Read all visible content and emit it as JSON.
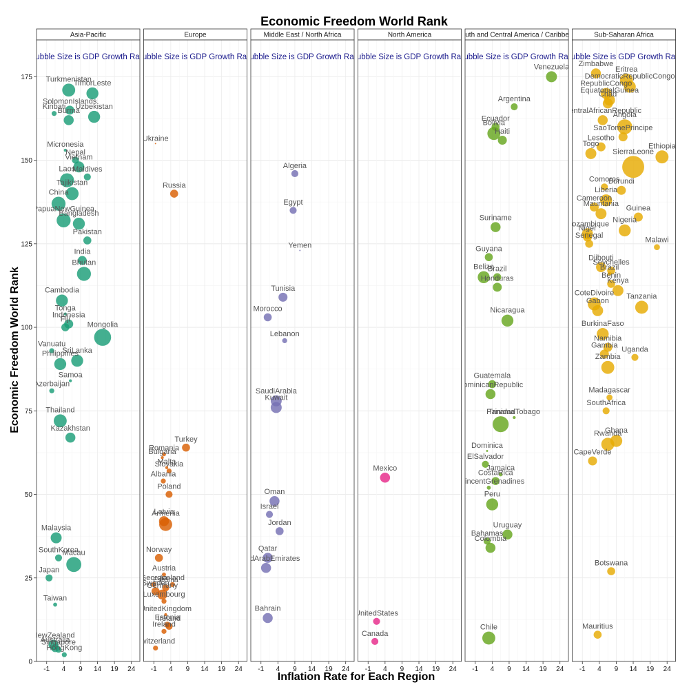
{
  "chart_data": {
    "type": "scatter",
    "title": "Economic Freedom World Rank",
    "xlabel": "Inflation Rate for Each Region",
    "ylabel": "Economic Freedom World Rank",
    "xlim": [
      -4,
      26.5
    ],
    "ylim": [
      0,
      186
    ],
    "x_ticks": [
      -1,
      4,
      9,
      14,
      19,
      24
    ],
    "y_ticks": [
      0,
      25,
      50,
      75,
      100,
      125,
      150,
      175
    ],
    "grid": true,
    "legend": "none",
    "panel_note": "Bubble Size is GDP Growth Rate",
    "panels": [
      {
        "name": "Asia-Pacific",
        "color": "#1b9e77",
        "points": [
          {
            "label": "Turkmenistan",
            "x": 5.5,
            "y": 171,
            "size": 6.5
          },
          {
            "label": "TimorLeste",
            "x": 12.5,
            "y": 170,
            "size": 6.0
          },
          {
            "label": "SolomonIslands",
            "x": 5.8,
            "y": 165,
            "size": 4.5
          },
          {
            "label": "Kiribati",
            "x": 1.2,
            "y": 164,
            "size": 2.5
          },
          {
            "label": "Burma",
            "x": 5.5,
            "y": 162,
            "size": 5.0
          },
          {
            "label": "Uzbekistan",
            "x": 13.0,
            "y": 163,
            "size": 6.0
          },
          {
            "label": "Micronesia",
            "x": 4.5,
            "y": 153,
            "size": 1.5
          },
          {
            "label": "Nepal",
            "x": 7.5,
            "y": 150,
            "size": 3.5
          },
          {
            "label": "Vietnam",
            "x": 8.5,
            "y": 148,
            "size": 5.5
          },
          {
            "label": "Maldives",
            "x": 11.0,
            "y": 145,
            "size": 3.5
          },
          {
            "label": "Laos",
            "x": 5.0,
            "y": 144,
            "size": 7.0
          },
          {
            "label": "Tajikistan",
            "x": 6.5,
            "y": 140,
            "size": 6.5
          },
          {
            "label": "China",
            "x": 2.5,
            "y": 137,
            "size": 7.0
          },
          {
            "label": "PapuaNewGuinea",
            "x": 4.0,
            "y": 132,
            "size": 7.0
          },
          {
            "label": "Bangladesh",
            "x": 8.5,
            "y": 131,
            "size": 6.0
          },
          {
            "label": "Pakistan",
            "x": 11.0,
            "y": 126,
            "size": 4.0
          },
          {
            "label": "India",
            "x": 9.5,
            "y": 120,
            "size": 4.5
          },
          {
            "label": "Bhutan",
            "x": 10.0,
            "y": 116,
            "size": 7.0
          },
          {
            "label": "Cambodia",
            "x": 3.5,
            "y": 108,
            "size": 6.0
          },
          {
            "label": "Tonga",
            "x": 4.5,
            "y": 104,
            "size": 1.5
          },
          {
            "label": "Indonesia",
            "x": 5.5,
            "y": 101,
            "size": 4.5
          },
          {
            "label": "Fiji",
            "x": 4.5,
            "y": 100,
            "size": 4.0
          },
          {
            "label": "Mongolia",
            "x": 15.5,
            "y": 97,
            "size": 8.5
          },
          {
            "label": "Vanuatu",
            "x": 0.5,
            "y": 93,
            "size": 2.5
          },
          {
            "label": "SriLanka",
            "x": 8.0,
            "y": 90,
            "size": 6.0
          },
          {
            "label": "Philippines",
            "x": 3.0,
            "y": 89,
            "size": 6.0
          },
          {
            "label": "Samoa",
            "x": 6.0,
            "y": 84,
            "size": 1.5
          },
          {
            "label": "Azerbaijan",
            "x": 0.5,
            "y": 81,
            "size": 2.5
          },
          {
            "label": "Thailand",
            "x": 3.0,
            "y": 72,
            "size": 6.5
          },
          {
            "label": "Kazakhstan",
            "x": 6.0,
            "y": 67,
            "size": 5.0
          },
          {
            "label": "Malaysia",
            "x": 1.8,
            "y": 37,
            "size": 5.5
          },
          {
            "label": "SouthKorea",
            "x": 2.5,
            "y": 31,
            "size": 3.5
          },
          {
            "label": "Macau",
            "x": 7.0,
            "y": 29,
            "size": 7.5
          },
          {
            "label": "Japan",
            "x": -0.3,
            "y": 25,
            "size": 3.5
          },
          {
            "label": "Taiwan",
            "x": 1.5,
            "y": 17,
            "size": 2.0
          },
          {
            "label": "NewZealand",
            "x": 1.0,
            "y": 5,
            "size": 5.0
          },
          {
            "label": "Australia",
            "x": 1.5,
            "y": 4,
            "size": 4.0
          },
          {
            "label": "Singapore",
            "x": 2.5,
            "y": 3.5,
            "size": 3.0
          },
          {
            "label": "HongKong",
            "x": 4.2,
            "y": 2,
            "size": 2.5
          }
        ]
      },
      {
        "name": "Europe",
        "color": "#d95f02",
        "points": [
          {
            "label": "Ukraine",
            "x": -0.5,
            "y": 155,
            "size": 0.5
          },
          {
            "label": "Russia",
            "x": 5.0,
            "y": 140,
            "size": 4.0
          },
          {
            "label": "Turkey",
            "x": 8.5,
            "y": 64,
            "size": 4.0
          },
          {
            "label": "Romania",
            "x": 2.0,
            "y": 62,
            "size": 2.0
          },
          {
            "label": "Bulgaria",
            "x": 1.5,
            "y": 61,
            "size": 1.5
          },
          {
            "label": "Malta",
            "x": 2.8,
            "y": 58,
            "size": 1.5
          },
          {
            "label": "Slovakia",
            "x": 3.5,
            "y": 57,
            "size": 2.5
          },
          {
            "label": "Albania",
            "x": 1.8,
            "y": 54,
            "size": 2.5
          },
          {
            "label": "Poland",
            "x": 3.5,
            "y": 50,
            "size": 3.5
          },
          {
            "label": "Latvia",
            "x": 2.0,
            "y": 42,
            "size": 5.0
          },
          {
            "label": "Armenia",
            "x": 2.5,
            "y": 41,
            "size": 6.5
          },
          {
            "label": "Norway",
            "x": 0.5,
            "y": 31,
            "size": 4.0
          },
          {
            "label": "Austria",
            "x": 2.0,
            "y": 26,
            "size": 2.0
          },
          {
            "label": "Iceland",
            "x": 4.5,
            "y": 23,
            "size": 2.5
          },
          {
            "label": "Georgia",
            "x": -1.0,
            "y": 23,
            "size": 2.5
          },
          {
            "label": "Estonia",
            "x": 2.5,
            "y": 22,
            "size": 3.5
          },
          {
            "label": "Sweden",
            "x": -0.5,
            "y": 21,
            "size": 4.0
          },
          {
            "label": "Germany",
            "x": 1.5,
            "y": 20,
            "size": 5.0
          },
          {
            "label": "Luxembourg",
            "x": 2.0,
            "y": 18,
            "size": 2.5
          },
          {
            "label": "UnitedKingdom",
            "x": 2.5,
            "y": 14,
            "size": 1.5
          },
          {
            "label": "Estonia",
            "x": 3.0,
            "y": 11,
            "size": 3.0
          },
          {
            "label": "Ireland",
            "x": 3.5,
            "y": 10.5,
            "size": 3.5
          },
          {
            "label": "Ireland",
            "x": 2.0,
            "y": 9,
            "size": 2.5
          },
          {
            "label": "Switzerland",
            "x": -0.5,
            "y": 4,
            "size": 2.5
          }
        ]
      },
      {
        "name": "Middle East / North Africa",
        "color": "#7570b3",
        "points": [
          {
            "label": "Algeria",
            "x": 9.0,
            "y": 146,
            "size": 3.5
          },
          {
            "label": "Egypt",
            "x": 8.5,
            "y": 135,
            "size": 3.5
          },
          {
            "label": "Yemen",
            "x": 10.5,
            "y": 123,
            "size": 0.5
          },
          {
            "label": "Tunisia",
            "x": 5.5,
            "y": 109,
            "size": 4.5
          },
          {
            "label": "Morocco",
            "x": 1.0,
            "y": 103,
            "size": 4.0
          },
          {
            "label": "Lebanon",
            "x": 6.0,
            "y": 96,
            "size": 2.5
          },
          {
            "label": "SaudiArabia",
            "x": 3.5,
            "y": 78,
            "size": 5.5
          },
          {
            "label": "Kuwait",
            "x": 3.5,
            "y": 76,
            "size": 5.5
          },
          {
            "label": "Oman",
            "x": 3.0,
            "y": 48,
            "size": 5.0
          },
          {
            "label": "Israel",
            "x": 1.5,
            "y": 44,
            "size": 3.5
          },
          {
            "label": "Jordan",
            "x": 4.5,
            "y": 39,
            "size": 4.0
          },
          {
            "label": "Qatar",
            "x": 1.0,
            "y": 31,
            "size": 5.0
          },
          {
            "label": "UnitedArabEmirates",
            "x": 0.5,
            "y": 28,
            "size": 5.0
          },
          {
            "label": "Bahrain",
            "x": 1.0,
            "y": 13,
            "size": 5.0
          }
        ]
      },
      {
        "name": "North America",
        "color": "#e7298a",
        "points": [
          {
            "label": "Mexico",
            "x": 4.0,
            "y": 55,
            "size": 5.0
          },
          {
            "label": "UnitedStates",
            "x": 1.5,
            "y": 12,
            "size": 3.5
          },
          {
            "label": "Canada",
            "x": 1.0,
            "y": 6,
            "size": 3.5
          }
        ]
      },
      {
        "name": "South and Central America / Caribbean",
        "color": "#66a61e",
        "points": [
          {
            "label": "Venezuela",
            "x": 21.5,
            "y": 175,
            "size": 5.5
          },
          {
            "label": "Argentina",
            "x": 10.5,
            "y": 166,
            "size": 3.5
          },
          {
            "label": "Ecuador",
            "x": 5.0,
            "y": 160,
            "size": 4.0
          },
          {
            "label": "Bolivia",
            "x": 4.5,
            "y": 158,
            "size": 6.5
          },
          {
            "label": "Haiti",
            "x": 7.0,
            "y": 156,
            "size": 4.5
          },
          {
            "label": "Suriname",
            "x": 5.0,
            "y": 130,
            "size": 5.0
          },
          {
            "label": "Guyana",
            "x": 3.0,
            "y": 121,
            "size": 4.0
          },
          {
            "label": "Belize",
            "x": 1.5,
            "y": 115,
            "size": 6.0
          },
          {
            "label": "Brazil",
            "x": 5.5,
            "y": 115,
            "size": 4.0
          },
          {
            "label": "Honduras",
            "x": 5.5,
            "y": 112,
            "size": 4.5
          },
          {
            "label": "Nicaragua",
            "x": 8.5,
            "y": 102,
            "size": 6.0
          },
          {
            "label": "Guatemala",
            "x": 4.0,
            "y": 83,
            "size": 4.0
          },
          {
            "label": "DominicanRepublic",
            "x": 3.5,
            "y": 80,
            "size": 5.0
          },
          {
            "label": "TrinidadTobago",
            "x": 10.5,
            "y": 73,
            "size": 1.5
          },
          {
            "label": "Panama",
            "x": 6.5,
            "y": 71,
            "size": 8.0
          },
          {
            "label": "Dominica",
            "x": 2.5,
            "y": 63,
            "size": 1.0
          },
          {
            "label": "ElSalvador",
            "x": 2.0,
            "y": 59,
            "size": 3.5
          },
          {
            "label": "Jamaica",
            "x": 6.5,
            "y": 56,
            "size": 2.0
          },
          {
            "label": "CostaRica",
            "x": 5.0,
            "y": 54,
            "size": 4.0
          },
          {
            "label": "StVincentGrenadines",
            "x": 3.0,
            "y": 52,
            "size": 2.0
          },
          {
            "label": "Peru",
            "x": 4.0,
            "y": 47,
            "size": 6.0
          },
          {
            "label": "Uruguay",
            "x": 8.5,
            "y": 38,
            "size": 5.0
          },
          {
            "label": "Bahamas",
            "x": 2.5,
            "y": 36,
            "size": 3.5
          },
          {
            "label": "Colombia",
            "x": 3.5,
            "y": 34,
            "size": 5.0
          },
          {
            "label": "Chile",
            "x": 3.0,
            "y": 7,
            "size": 6.5
          }
        ]
      },
      {
        "name": "Sub-Saharan Africa",
        "color": "#e6ab02",
        "points": [
          {
            "label": "Zimbabwe",
            "x": 3.0,
            "y": 176,
            "size": 5.0
          },
          {
            "label": "Eritrea",
            "x": 12.0,
            "y": 174,
            "size": 6.5
          },
          {
            "label": "DemocraticRepublicCongo",
            "x": 13.0,
            "y": 172,
            "size": 6.0
          },
          {
            "label": "RepublicCongo",
            "x": 6.0,
            "y": 170,
            "size": 5.5
          },
          {
            "label": "EquatorialGuinea",
            "x": 7.0,
            "y": 168,
            "size": 5.5
          },
          {
            "label": "Chad",
            "x": 6.5,
            "y": 167,
            "size": 5.0
          },
          {
            "label": "CentralAfricanRepublic",
            "x": 5.0,
            "y": 162,
            "size": 5.0
          },
          {
            "label": "Angola",
            "x": 11.5,
            "y": 160,
            "size": 7.5
          },
          {
            "label": "SaoTomePrincipe",
            "x": 11.0,
            "y": 157,
            "size": 4.5
          },
          {
            "label": "Lesotho",
            "x": 4.5,
            "y": 154,
            "size": 4.5
          },
          {
            "label": "Togo",
            "x": 1.5,
            "y": 152,
            "size": 5.5
          },
          {
            "label": "SierraLeone",
            "x": 14.0,
            "y": 148,
            "size": 11.0
          },
          {
            "label": "Ethiopia",
            "x": 22.5,
            "y": 151,
            "size": 6.5
          },
          {
            "label": "Comoros",
            "x": 5.5,
            "y": 142,
            "size": 3.5
          },
          {
            "label": "Burundi",
            "x": 10.5,
            "y": 141,
            "size": 4.5
          },
          {
            "label": "Liberia",
            "x": 6.0,
            "y": 138,
            "size": 6.0
          },
          {
            "label": "Cameroon",
            "x": 2.5,
            "y": 136,
            "size": 4.5
          },
          {
            "label": "Mauritania",
            "x": 4.5,
            "y": 134,
            "size": 5.5
          },
          {
            "label": "Guinea",
            "x": 15.5,
            "y": 133,
            "size": 4.5
          },
          {
            "label": "Nigeria",
            "x": 11.5,
            "y": 129,
            "size": 6.0
          },
          {
            "label": "Mozambique",
            "x": 0.5,
            "y": 128,
            "size": 5.5
          },
          {
            "label": "Niger",
            "x": 0.5,
            "y": 127,
            "size": 4.5
          },
          {
            "label": "Senegal",
            "x": 1.0,
            "y": 125,
            "size": 4.0
          },
          {
            "label": "Malawi",
            "x": 21.0,
            "y": 124,
            "size": 3.0
          },
          {
            "label": "Djibouti",
            "x": 4.5,
            "y": 118,
            "size": 5.0
          },
          {
            "label": "Seychelles",
            "x": 7.5,
            "y": 117,
            "size": 4.0
          },
          {
            "label": "Brazil",
            "x": 7.0,
            "y": 116,
            "size": 2.0
          },
          {
            "label": "Benin",
            "x": 7.5,
            "y": 113,
            "size": 4.0
          },
          {
            "label": "Kenya",
            "x": 9.5,
            "y": 111,
            "size": 5.5
          },
          {
            "label": "CoteDivoire",
            "x": 2.5,
            "y": 107,
            "size": 6.5
          },
          {
            "label": "Gabon",
            "x": 3.5,
            "y": 105,
            "size": 5.5
          },
          {
            "label": "Tanzania",
            "x": 16.5,
            "y": 106,
            "size": 6.5
          },
          {
            "label": "BurkinaFaso",
            "x": 5.0,
            "y": 98,
            "size": 6.0
          },
          {
            "label": "Namibia",
            "x": 6.5,
            "y": 94,
            "size": 4.5
          },
          {
            "label": "Gambia",
            "x": 5.5,
            "y": 92,
            "size": 4.5
          },
          {
            "label": "Uganda",
            "x": 14.5,
            "y": 91,
            "size": 3.5
          },
          {
            "label": "Zambia",
            "x": 6.5,
            "y": 88,
            "size": 6.5
          },
          {
            "label": "Madagascar",
            "x": 7.0,
            "y": 79,
            "size": 3.0
          },
          {
            "label": "SouthAfrica",
            "x": 6.0,
            "y": 75,
            "size": 3.5
          },
          {
            "label": "Ghana",
            "x": 9.0,
            "y": 66,
            "size": 6.0
          },
          {
            "label": "Rwanda",
            "x": 6.5,
            "y": 65,
            "size": 6.5
          },
          {
            "label": "CapeVerde",
            "x": 2.0,
            "y": 60,
            "size": 4.5
          },
          {
            "label": "Botswana",
            "x": 7.5,
            "y": 27,
            "size": 4.0
          },
          {
            "label": "Mauritius",
            "x": 3.5,
            "y": 8,
            "size": 4.0
          }
        ]
      }
    ]
  }
}
